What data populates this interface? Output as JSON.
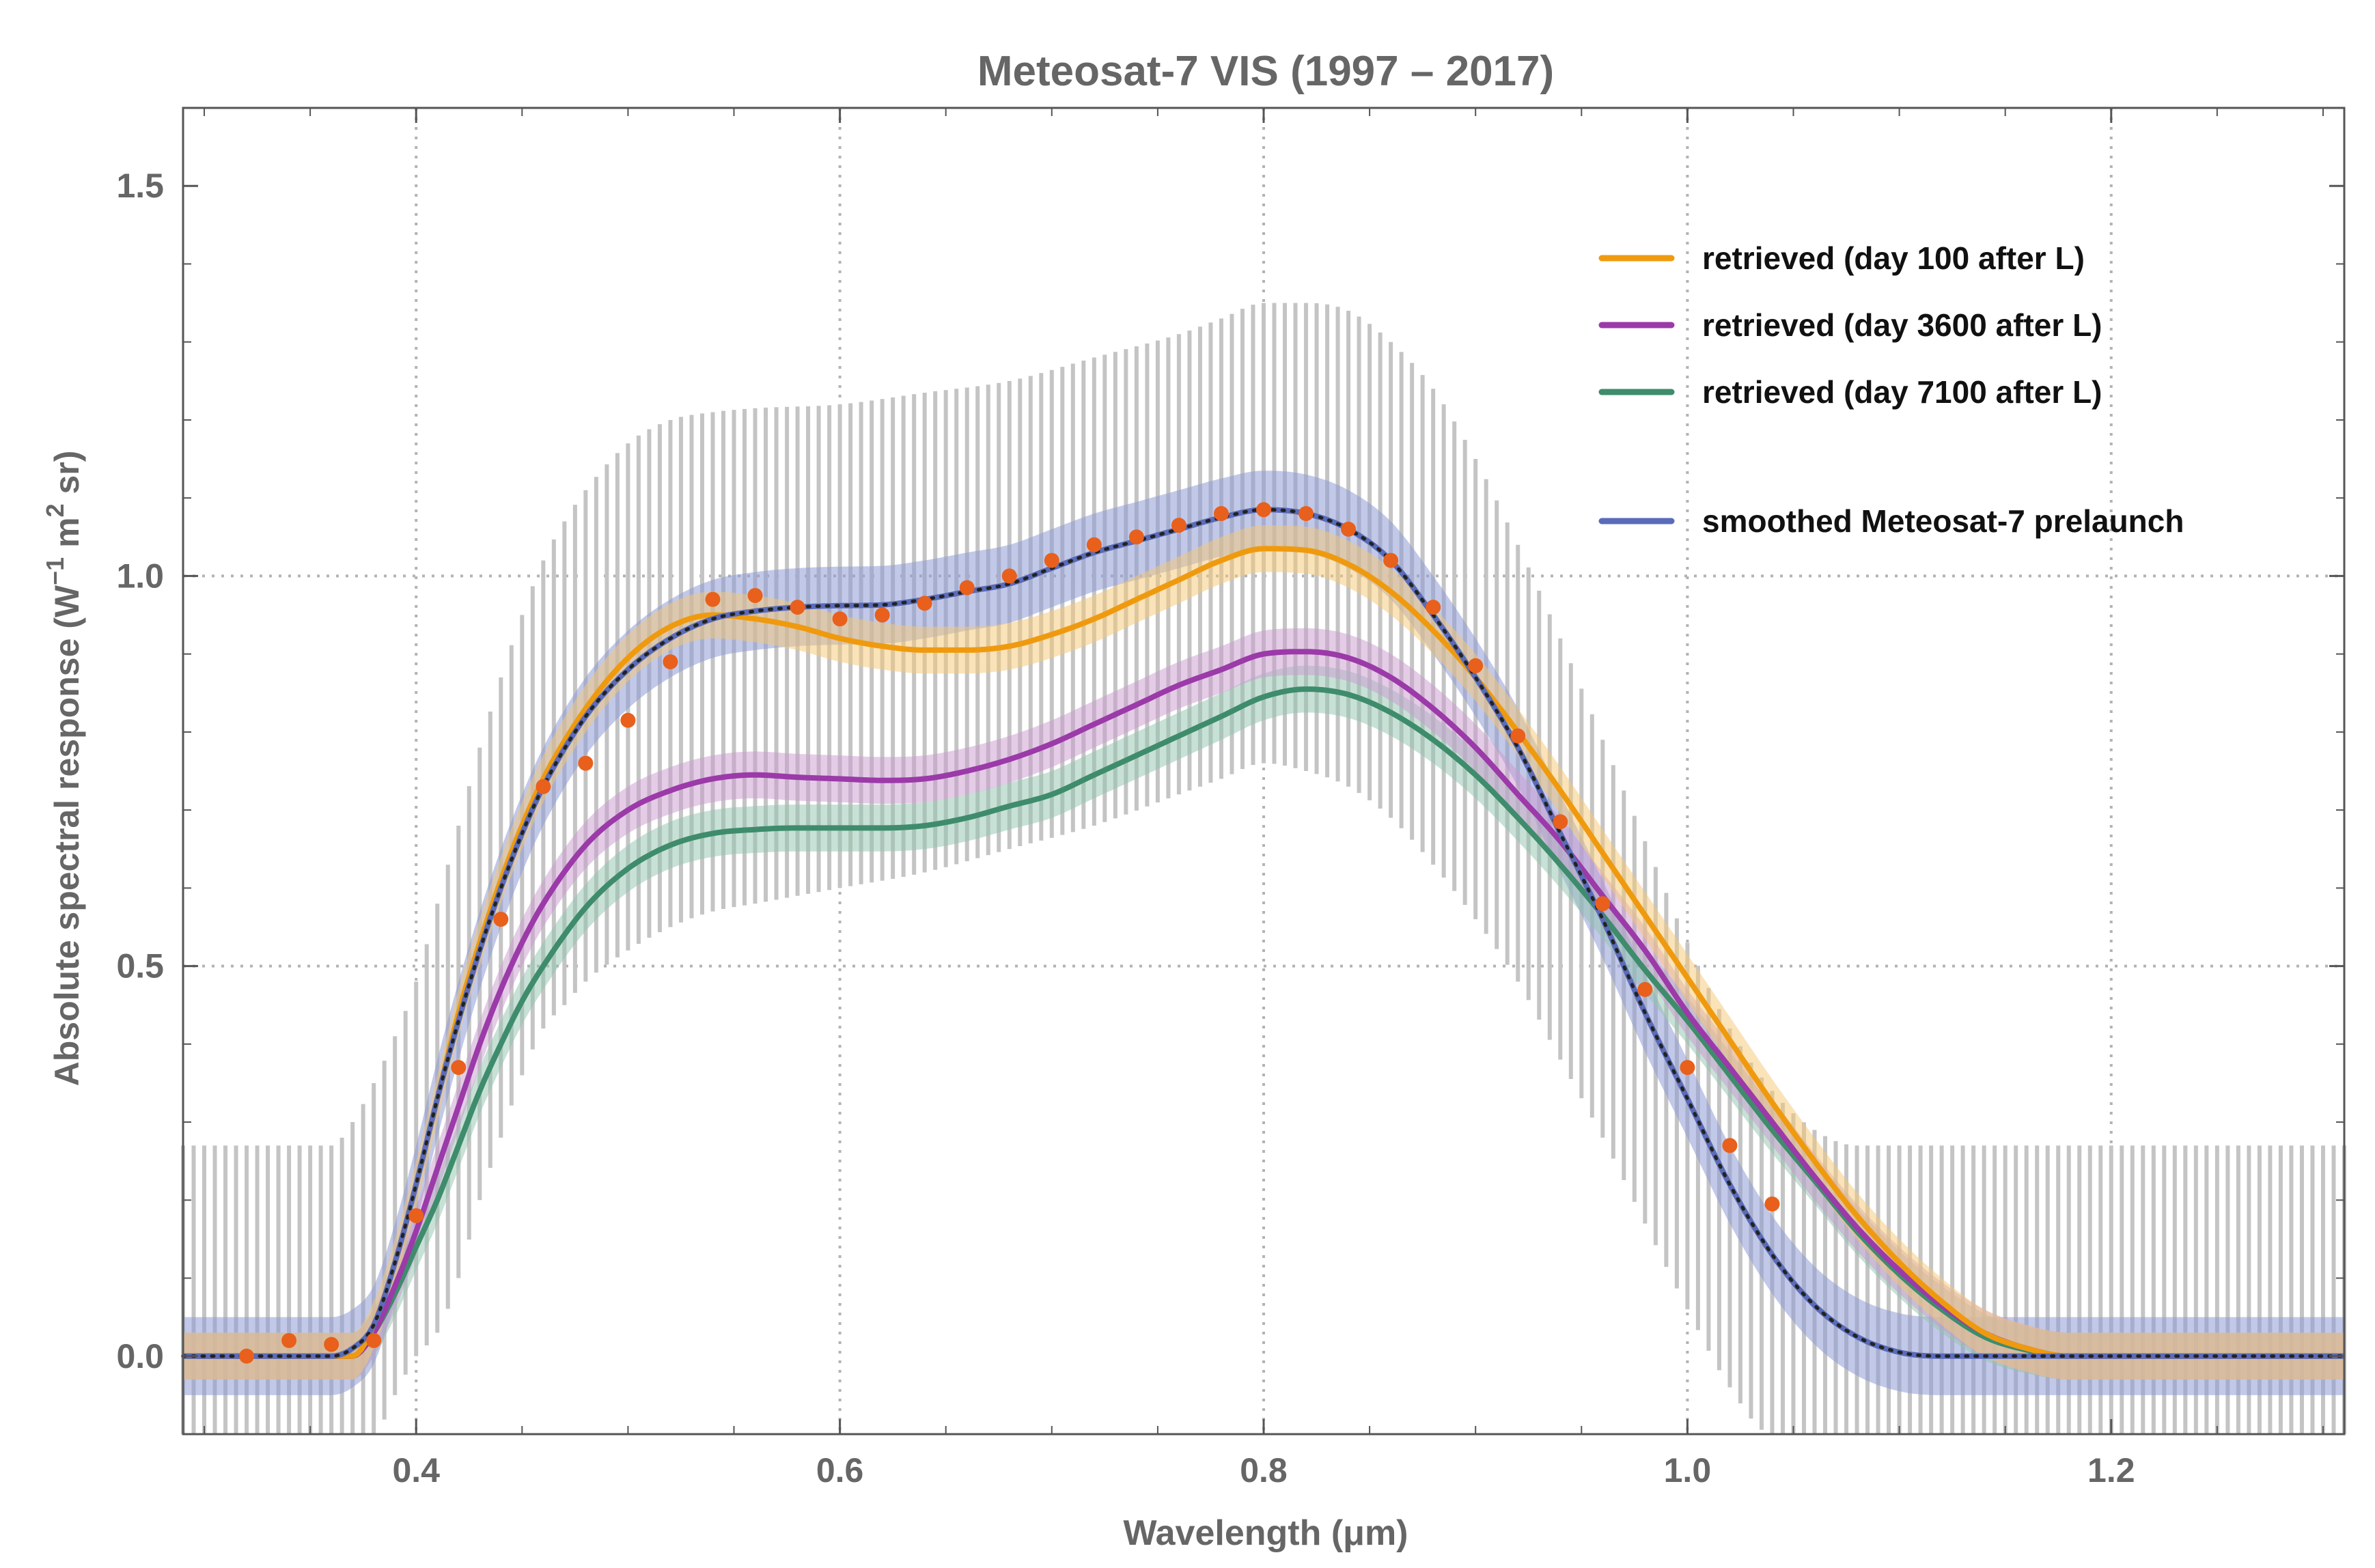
{
  "chart_data": {
    "type": "line",
    "title": "Meteosat-7 VIS (1997 – 2017)",
    "xlabel": "Wavelength (μm)",
    "ylabel": {
      "prefix": "Absolute spectral response (W",
      "sup1": "−1",
      "middle": " m",
      "sup2": "2",
      "suffix": " sr)"
    },
    "xlim": [
      0.29,
      1.31
    ],
    "ylim": [
      -0.1,
      1.6
    ],
    "xticks": [
      {
        "value": 0.4,
        "label": "0.4"
      },
      {
        "value": 0.6,
        "label": "0.6"
      },
      {
        "value": 0.8,
        "label": "0.8"
      },
      {
        "value": 1.0,
        "label": "1.0"
      },
      {
        "value": 1.2,
        "label": "1.2"
      }
    ],
    "yticks": [
      {
        "value": 0.0,
        "label": "0.0"
      },
      {
        "value": 0.5,
        "label": "0.5"
      },
      {
        "value": 1.0,
        "label": "1.0"
      },
      {
        "value": 1.5,
        "label": "1.5"
      }
    ],
    "x_gridlines": [
      0.4,
      0.6,
      0.8,
      1.0,
      1.2
    ],
    "y_gridlines": [
      0.5,
      1.0
    ],
    "series": [
      {
        "name": "smoothed Meteosat-7 prelaunch",
        "color": "#5a6bb8",
        "band_color": "#8f9cd6",
        "band_halfwidth": 0.05,
        "x": [
          0.29,
          0.36,
          0.37,
          0.38,
          0.39,
          0.4,
          0.41,
          0.42,
          0.43,
          0.44,
          0.45,
          0.46,
          0.48,
          0.5,
          0.52,
          0.54,
          0.56,
          0.58,
          0.6,
          0.62,
          0.64,
          0.66,
          0.68,
          0.7,
          0.72,
          0.74,
          0.76,
          0.78,
          0.8,
          0.82,
          0.84,
          0.86,
          0.88,
          0.9,
          0.92,
          0.94,
          0.96,
          0.98,
          1.0,
          1.02,
          1.04,
          1.06,
          1.08,
          1.1,
          1.12,
          1.15,
          1.31
        ],
        "y": [
          0.0,
          0.0,
          0.01,
          0.04,
          0.12,
          0.22,
          0.33,
          0.43,
          0.52,
          0.6,
          0.67,
          0.73,
          0.82,
          0.88,
          0.92,
          0.945,
          0.955,
          0.96,
          0.962,
          0.963,
          0.97,
          0.98,
          0.99,
          1.01,
          1.03,
          1.045,
          1.06,
          1.075,
          1.085,
          1.08,
          1.06,
          1.02,
          0.95,
          0.87,
          0.78,
          0.67,
          0.56,
          0.44,
          0.33,
          0.22,
          0.13,
          0.065,
          0.025,
          0.005,
          0.0,
          0.0,
          0.0
        ]
      },
      {
        "name": "retrieved (day 100 after L)",
        "color": "#ef9a0e",
        "band_color": "#f5c873",
        "band_halfwidth": 0.03,
        "x": [
          0.29,
          0.37,
          0.38,
          0.39,
          0.4,
          0.41,
          0.42,
          0.43,
          0.44,
          0.45,
          0.46,
          0.48,
          0.5,
          0.52,
          0.54,
          0.56,
          0.58,
          0.6,
          0.62,
          0.64,
          0.66,
          0.68,
          0.7,
          0.72,
          0.74,
          0.76,
          0.78,
          0.8,
          0.82,
          0.84,
          0.86,
          0.88,
          0.9,
          0.92,
          0.94,
          0.96,
          0.98,
          1.0,
          1.02,
          1.04,
          1.06,
          1.08,
          1.1,
          1.12,
          1.14,
          1.16,
          1.18,
          1.31
        ],
        "y": [
          0.0,
          0.0,
          0.04,
          0.12,
          0.22,
          0.33,
          0.44,
          0.53,
          0.61,
          0.68,
          0.74,
          0.83,
          0.895,
          0.935,
          0.95,
          0.945,
          0.935,
          0.92,
          0.91,
          0.905,
          0.905,
          0.91,
          0.925,
          0.945,
          0.97,
          0.995,
          1.02,
          1.035,
          1.033,
          1.015,
          0.98,
          0.93,
          0.87,
          0.8,
          0.725,
          0.645,
          0.565,
          0.485,
          0.405,
          0.325,
          0.25,
          0.18,
          0.12,
          0.07,
          0.03,
          0.01,
          0.0,
          0.0
        ]
      },
      {
        "name": "retrieved (day 3600 after L)",
        "color": "#9b3aa8",
        "band_color": "#c999cf",
        "band_halfwidth": 0.03,
        "x": [
          0.29,
          0.37,
          0.38,
          0.39,
          0.4,
          0.41,
          0.42,
          0.43,
          0.44,
          0.45,
          0.46,
          0.48,
          0.5,
          0.52,
          0.54,
          0.56,
          0.58,
          0.6,
          0.62,
          0.64,
          0.66,
          0.68,
          0.7,
          0.72,
          0.74,
          0.76,
          0.78,
          0.8,
          0.82,
          0.84,
          0.86,
          0.88,
          0.9,
          0.92,
          0.94,
          0.96,
          0.98,
          1.0,
          1.02,
          1.04,
          1.06,
          1.08,
          1.1,
          1.12,
          1.14,
          1.16,
          1.18,
          1.31
        ],
        "y": [
          0.0,
          0.0,
          0.03,
          0.09,
          0.16,
          0.24,
          0.32,
          0.4,
          0.47,
          0.53,
          0.58,
          0.655,
          0.7,
          0.725,
          0.74,
          0.745,
          0.742,
          0.74,
          0.738,
          0.74,
          0.75,
          0.765,
          0.785,
          0.81,
          0.835,
          0.86,
          0.88,
          0.9,
          0.903,
          0.895,
          0.87,
          0.83,
          0.78,
          0.72,
          0.66,
          0.59,
          0.52,
          0.44,
          0.37,
          0.3,
          0.23,
          0.165,
          0.11,
          0.065,
          0.03,
          0.01,
          0.0,
          0.0
        ]
      },
      {
        "name": "retrieved (day 7100 after L)",
        "color": "#3e8c6c",
        "band_color": "#92c4ad",
        "band_halfwidth": 0.03,
        "x": [
          0.29,
          0.37,
          0.38,
          0.39,
          0.4,
          0.41,
          0.42,
          0.43,
          0.44,
          0.45,
          0.46,
          0.48,
          0.5,
          0.52,
          0.54,
          0.56,
          0.58,
          0.6,
          0.62,
          0.64,
          0.66,
          0.68,
          0.7,
          0.72,
          0.74,
          0.76,
          0.78,
          0.8,
          0.82,
          0.84,
          0.86,
          0.88,
          0.9,
          0.92,
          0.94,
          0.96,
          0.98,
          1.0,
          1.02,
          1.04,
          1.06,
          1.08,
          1.1,
          1.12,
          1.14,
          1.16,
          1.18,
          1.31
        ],
        "y": [
          0.0,
          0.0,
          0.03,
          0.08,
          0.14,
          0.2,
          0.27,
          0.34,
          0.4,
          0.455,
          0.5,
          0.575,
          0.625,
          0.655,
          0.67,
          0.675,
          0.677,
          0.677,
          0.677,
          0.68,
          0.69,
          0.705,
          0.72,
          0.745,
          0.77,
          0.795,
          0.82,
          0.845,
          0.855,
          0.848,
          0.825,
          0.79,
          0.745,
          0.69,
          0.63,
          0.565,
          0.495,
          0.43,
          0.36,
          0.29,
          0.225,
          0.16,
          0.105,
          0.06,
          0.025,
          0.008,
          0.0,
          0.0
        ]
      }
    ],
    "points": {
      "name": "prelaunch measurements",
      "color": "#e8601c",
      "x": [
        0.32,
        0.34,
        0.36,
        0.38,
        0.4,
        0.42,
        0.44,
        0.46,
        0.48,
        0.5,
        0.52,
        0.54,
        0.56,
        0.58,
        0.6,
        0.62,
        0.64,
        0.66,
        0.68,
        0.7,
        0.72,
        0.74,
        0.76,
        0.78,
        0.8,
        0.82,
        0.84,
        0.86,
        0.88,
        0.9,
        0.92,
        0.94,
        0.96,
        0.98,
        1.0,
        1.02,
        1.04
      ],
      "y": [
        0.0,
        0.02,
        0.015,
        0.02,
        0.18,
        0.37,
        0.56,
        0.73,
        0.76,
        0.815,
        0.89,
        0.97,
        0.975,
        0.96,
        0.945,
        0.95,
        0.965,
        0.985,
        1.0,
        1.02,
        1.04,
        1.05,
        1.065,
        1.08,
        1.085,
        1.08,
        1.06,
        1.02,
        0.96,
        0.885,
        0.795,
        0.685,
        0.58,
        0.47,
        0.37,
        0.27,
        0.195
      ]
    },
    "uncertainty_bars": {
      "color": "#c4c4c4",
      "x_start": 0.29,
      "x_step": 0.005,
      "x_end": 1.31,
      "profile": {
        "x": [
          0.29,
          0.36,
          0.37,
          0.38,
          0.39,
          0.4,
          0.41,
          0.42,
          0.43,
          0.44,
          0.45,
          0.46,
          0.47,
          0.48,
          0.5,
          0.52,
          0.54,
          0.56,
          0.6,
          0.64,
          0.68,
          0.72,
          0.76,
          0.78,
          0.8,
          0.82,
          0.84,
          0.86,
          0.88,
          0.9,
          0.92,
          0.94,
          0.96,
          0.98,
          1.0,
          1.02,
          1.04,
          1.06,
          1.08,
          1.1,
          1.12,
          1.31
        ],
        "high": [
          0.27,
          0.27,
          0.3,
          0.35,
          0.41,
          0.48,
          0.58,
          0.68,
          0.78,
          0.87,
          0.95,
          1.02,
          1.07,
          1.11,
          1.17,
          1.2,
          1.21,
          1.215,
          1.22,
          1.235,
          1.25,
          1.28,
          1.31,
          1.33,
          1.35,
          1.35,
          1.34,
          1.3,
          1.24,
          1.15,
          1.04,
          0.92,
          0.79,
          0.66,
          0.53,
          0.42,
          0.34,
          0.29,
          0.27,
          0.27,
          0.27,
          0.27
        ],
        "low": [
          -0.1,
          -0.1,
          -0.1,
          -0.1,
          -0.05,
          0.0,
          0.03,
          0.1,
          0.2,
          0.28,
          0.36,
          0.42,
          0.45,
          0.48,
          0.52,
          0.55,
          0.57,
          0.58,
          0.6,
          0.62,
          0.65,
          0.68,
          0.72,
          0.74,
          0.76,
          0.75,
          0.73,
          0.69,
          0.63,
          0.56,
          0.48,
          0.38,
          0.28,
          0.17,
          0.06,
          -0.04,
          -0.1,
          -0.1,
          -0.1,
          -0.1,
          -0.1,
          -0.1
        ]
      }
    },
    "legend": {
      "placement": "top-right",
      "entries": [
        {
          "label": "retrieved (day 100 after L)",
          "color": "#ef9a0e"
        },
        {
          "label": "retrieved (day 3600 after L)",
          "color": "#9b3aa8"
        },
        {
          "label": "retrieved (day 7100 after L)",
          "color": "#3e8c6c"
        },
        {
          "label": "smoothed Meteosat-7 prelaunch",
          "color": "#5a6bb8"
        }
      ]
    }
  }
}
